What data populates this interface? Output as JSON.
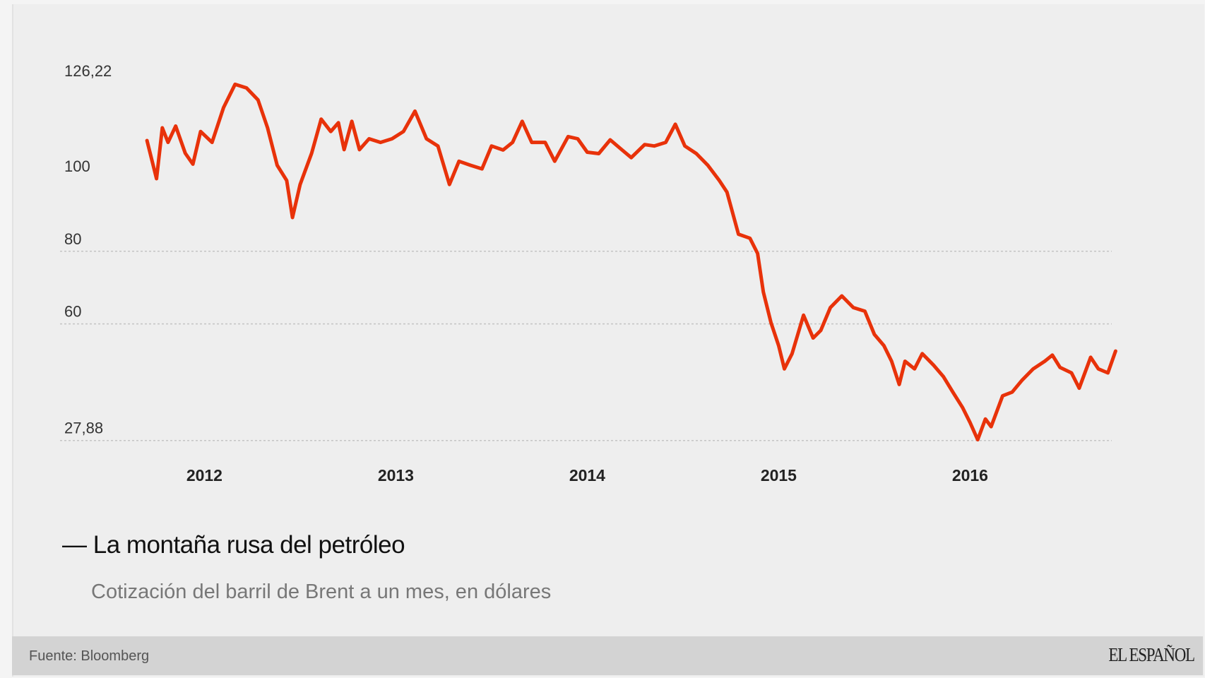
{
  "chart_data": {
    "type": "line",
    "title": "La montaña rusa del petróleo",
    "subtitle": "Cotización del barril de Brent a un mes, en dólares",
    "title_marker": "—",
    "xlabel": "",
    "ylabel": "",
    "x_ticks": [
      "2012",
      "2013",
      "2014",
      "2015",
      "2016"
    ],
    "x_tick_values": [
      2012,
      2013,
      2014,
      2015,
      2016
    ],
    "y_ticks": [
      {
        "value": 126.22,
        "label": "126,22",
        "gridline": false
      },
      {
        "value": 100,
        "label": "100",
        "gridline": false
      },
      {
        "value": 80,
        "label": "80",
        "gridline": true
      },
      {
        "value": 60,
        "label": "60",
        "gridline": true
      },
      {
        "value": 27.88,
        "label": "27,88",
        "gridline": true
      }
    ],
    "ylim": [
      27.88,
      126.22
    ],
    "xlim": [
      2011.7,
      2016.76
    ],
    "grid": "dotted horizontal at 80, 60, 27,88",
    "legend": "none",
    "line_color": "#e8320a",
    "series": [
      {
        "x": [
          2011.7,
          2011.75,
          2011.78,
          2011.81,
          2011.85,
          2011.9,
          2011.94,
          2011.98,
          2012.04,
          2012.1,
          2012.16,
          2012.22,
          2012.28,
          2012.33,
          2012.38,
          2012.43,
          2012.46,
          2012.5,
          2012.56,
          2012.61,
          2012.66,
          2012.7,
          2012.73,
          2012.77,
          2012.81,
          2012.86,
          2012.92,
          2012.98,
          2013.04,
          2013.1,
          2013.16,
          2013.22,
          2013.28,
          2013.33,
          2013.39,
          2013.45,
          2013.5,
          2013.56,
          2013.61,
          2013.66,
          2013.71,
          2013.78,
          2013.83,
          2013.9,
          2013.95,
          2014.0,
          2014.06,
          2014.12,
          2014.18,
          2014.23,
          2014.3,
          2014.35,
          2014.41,
          2014.46,
          2014.51,
          2014.57,
          2014.63,
          2014.69,
          2014.73,
          2014.79,
          2014.85,
          2014.89,
          2014.92,
          2014.96,
          2015.0,
          2015.03,
          2015.07,
          2015.13,
          2015.18,
          2015.22,
          2015.27,
          2015.33,
          2015.39,
          2015.45,
          2015.5,
          2015.55,
          2015.59,
          2015.63,
          2015.66,
          2015.71,
          2015.75,
          2015.81,
          2015.86,
          2015.91,
          2015.96,
          2016.0,
          2016.04,
          2016.08,
          2016.11,
          2016.17,
          2016.22,
          2016.27,
          2016.33,
          2016.39,
          2016.43,
          2016.47,
          2016.53,
          2016.57,
          2016.63,
          2016.67,
          2016.72,
          2016.76
        ],
        "values": [
          110.5,
          100,
          114,
          110,
          114.5,
          107,
          104,
          113,
          110,
          119.6,
          126,
          125,
          121.7,
          114,
          103.7,
          99.5,
          89.3,
          98.4,
          107,
          116.4,
          113,
          115.4,
          108,
          115.8,
          108,
          111,
          110,
          111,
          113,
          118.6,
          111,
          109,
          98.4,
          104.8,
          103.7,
          102.7,
          109,
          107.9,
          110,
          115.8,
          110,
          110,
          104.8,
          111.6,
          111,
          107.3,
          106.9,
          110.7,
          108,
          105.8,
          109.4,
          109,
          110,
          115,
          109,
          106.9,
          103.7,
          99.5,
          96.3,
          84.7,
          83.6,
          79.4,
          68.8,
          60.3,
          54,
          47.6,
          51.8,
          62.4,
          56.1,
          58.2,
          64.5,
          67.7,
          64.5,
          63.5,
          57.1,
          54,
          49.7,
          43.3,
          49.7,
          47.6,
          51.8,
          48.6,
          45.5,
          41.2,
          37,
          32.8,
          28.1,
          33.8,
          31.7,
          40.2,
          41.2,
          44.4,
          47.6,
          49.7,
          51.4,
          48,
          46.5,
          42.3,
          50.8,
          47.6,
          46.5,
          52.5
        ]
      }
    ]
  },
  "footer": {
    "source": "Fuente: Bloomberg",
    "logo": "EL ESPAÑOL"
  }
}
